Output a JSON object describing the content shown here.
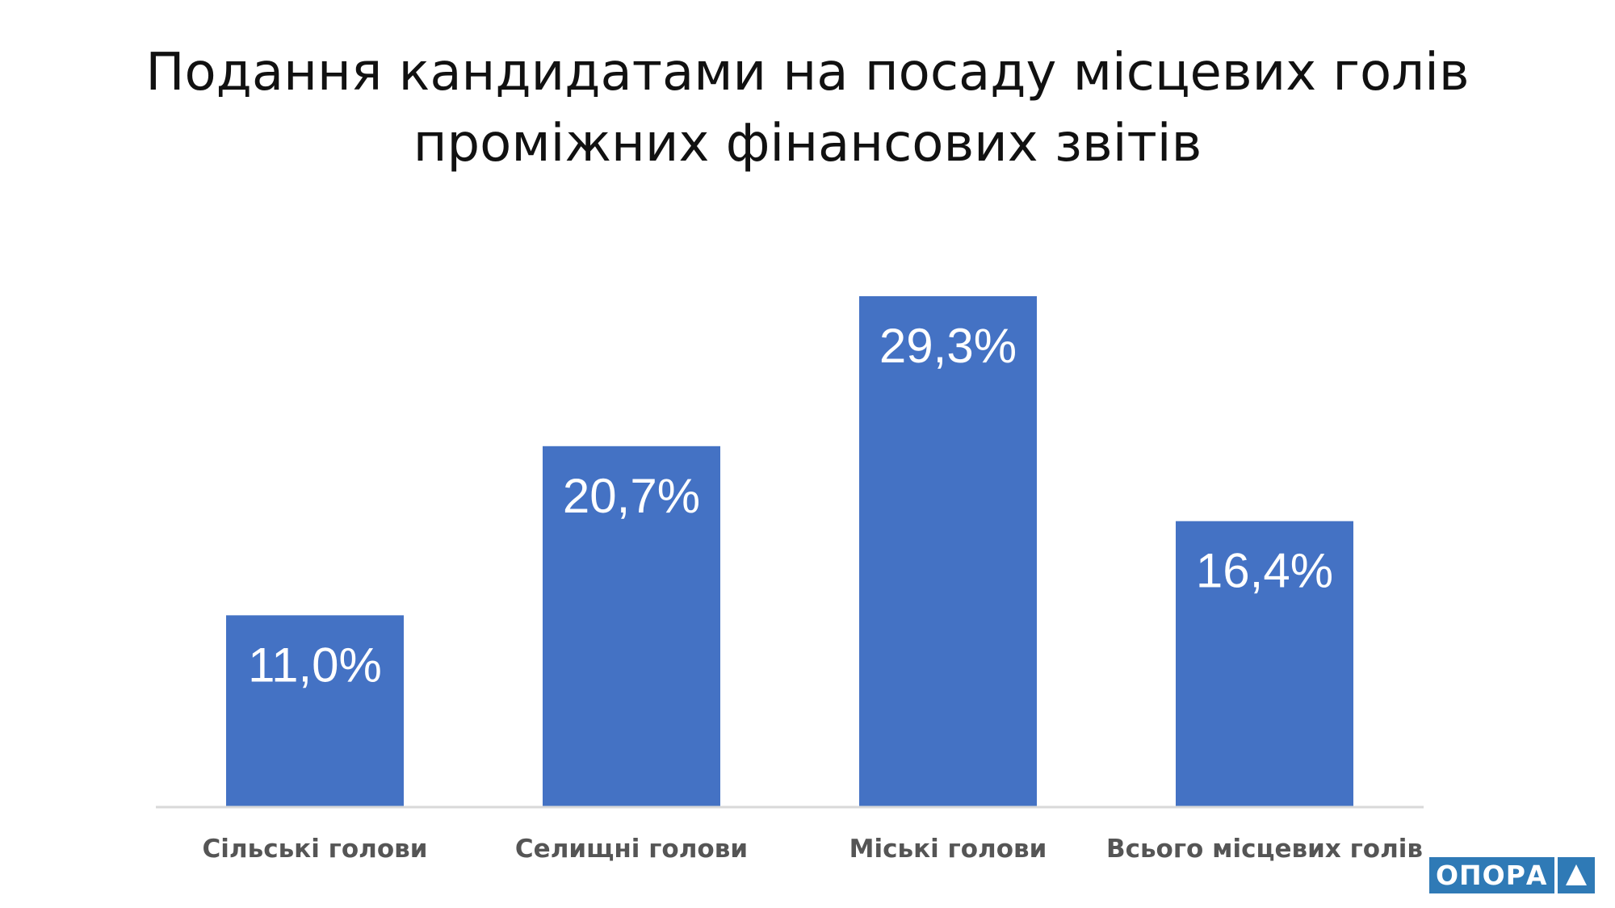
{
  "chart_data": {
    "type": "bar",
    "title_lines": [
      "Подання кандидатами на посаду місцевих голів",
      "проміжних фінансових звітів"
    ],
    "categories": [
      "Сільські голови",
      "Селищні голови",
      "Міські голови",
      "Всього місцевих голів"
    ],
    "values": [
      11.0,
      20.7,
      29.3,
      16.4
    ],
    "value_labels": [
      "11,0%",
      "20,7%",
      "29,3%",
      "16,4%"
    ],
    "xlabel": "",
    "ylabel": "",
    "ylim": [
      0,
      35
    ],
    "grid": false,
    "legend": "none",
    "bar_color": "#4472c4"
  },
  "logo": {
    "text": "ОПОРА",
    "mark": "triangle-icon",
    "color": "#2f7ab6"
  }
}
